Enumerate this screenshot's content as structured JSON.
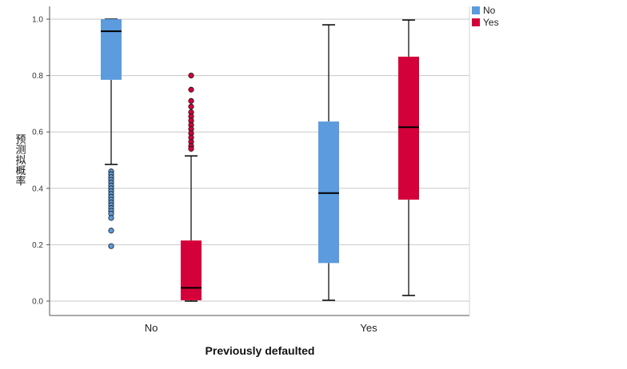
{
  "chart_data": {
    "type": "boxplot",
    "xlabel": "Previously defaulted",
    "ylabel": "预测拟概率",
    "ylim": [
      0.0,
      1.0
    ],
    "yticks": [
      "0.0",
      "0.2",
      "0.4",
      "0.6",
      "0.8",
      "1.0"
    ],
    "grid": true,
    "legend_position": "top-right",
    "categories": [
      "No",
      "Yes"
    ],
    "series": [
      {
        "name": "No",
        "color": "#5b9bde",
        "boxes": [
          {
            "category": "No",
            "q1": 0.785,
            "median": 0.957,
            "q3": 1.0,
            "whisker_low": 0.485,
            "whisker_high": 1.0,
            "outliers": [
              0.46,
              0.45,
              0.44,
              0.43,
              0.42,
              0.41,
              0.4,
              0.39,
              0.38,
              0.37,
              0.36,
              0.35,
              0.34,
              0.33,
              0.32,
              0.31,
              0.295,
              0.25,
              0.195
            ]
          },
          {
            "category": "Yes",
            "q1": 0.135,
            "median": 0.383,
            "q3": 0.637,
            "whisker_low": 0.003,
            "whisker_high": 0.98,
            "outliers": []
          }
        ]
      },
      {
        "name": "Yes",
        "color": "#d4003a",
        "boxes": [
          {
            "category": "No",
            "q1": 0.003,
            "median": 0.047,
            "q3": 0.215,
            "whisker_low": 0.0,
            "whisker_high": 0.515,
            "outliers": [
              0.8,
              0.75,
              0.71,
              0.69,
              0.67,
              0.655,
              0.64,
              0.625,
              0.61,
              0.595,
              0.58,
              0.565,
              0.55,
              0.54
            ]
          },
          {
            "category": "Yes",
            "q1": 0.36,
            "median": 0.617,
            "q3": 0.867,
            "whisker_low": 0.02,
            "whisker_high": 0.997,
            "outliers": []
          }
        ]
      }
    ]
  }
}
